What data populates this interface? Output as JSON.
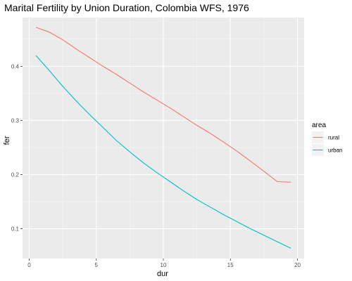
{
  "chart_data": {
    "type": "line",
    "title": "Marital Fertility by Union Duration, Colombia WFS, 1976",
    "xlabel": "dur",
    "ylabel": "fer",
    "xlim": [
      -0.5,
      20.5
    ],
    "ylim": [
      0.045,
      0.49
    ],
    "x_ticks": [
      0,
      5,
      10,
      15,
      20
    ],
    "x_tick_labels": [
      "0",
      "5",
      "10",
      "15",
      "20"
    ],
    "y_ticks": [
      0.1,
      0.2,
      0.3,
      0.4
    ],
    "y_tick_labels": [
      "0.1",
      "0.2",
      "0.3",
      "0.4"
    ],
    "grid": true,
    "legend": {
      "title": "area",
      "position": "right"
    },
    "x": [
      0.5,
      1.5,
      2.5,
      3.5,
      4.5,
      5.5,
      6.5,
      7.5,
      8.5,
      9.5,
      10.5,
      11.5,
      12.5,
      13.5,
      14.5,
      15.5,
      16.5,
      17.5,
      18.5,
      19.5
    ],
    "series": [
      {
        "name": "rural",
        "color": "#F8766D",
        "values": [
          0.472,
          0.463,
          0.449,
          0.432,
          0.416,
          0.4,
          0.385,
          0.369,
          0.353,
          0.338,
          0.323,
          0.307,
          0.291,
          0.276,
          0.26,
          0.243,
          0.225,
          0.206,
          0.187,
          0.186
        ]
      },
      {
        "name": "urban",
        "color": "#00BFC4",
        "values": [
          0.42,
          0.392,
          0.363,
          0.336,
          0.311,
          0.287,
          0.263,
          0.242,
          0.222,
          0.204,
          0.187,
          0.17,
          0.154,
          0.14,
          0.126,
          0.113,
          0.1,
          0.088,
          0.076,
          0.064
        ]
      }
    ]
  }
}
